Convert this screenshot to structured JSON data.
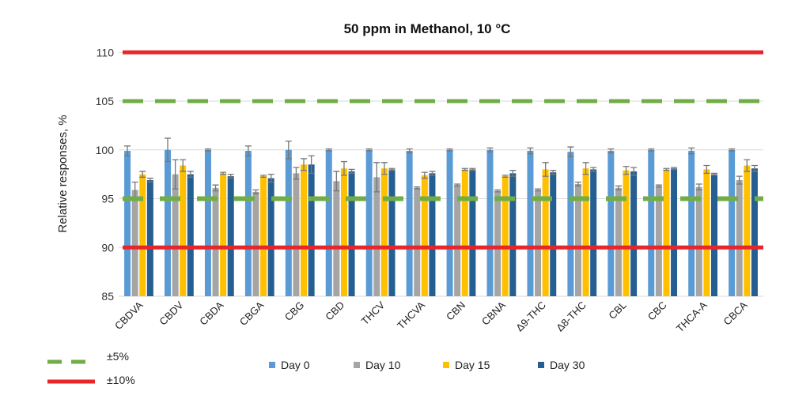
{
  "chart_data": {
    "type": "bar",
    "title": "50 ppm in Methanol, 10 °C",
    "xlabel": "",
    "ylabel": "Relative responses, %",
    "ylim": [
      85,
      110
    ],
    "yticks": [
      85,
      90,
      95,
      100,
      105,
      110
    ],
    "grid": true,
    "legend_position": "bottom",
    "categories": [
      "CBDVA",
      "CBDV",
      "CBDA",
      "CBGA",
      "CBG",
      "CBD",
      "THCV",
      "THCVA",
      "CBN",
      "CBNA",
      "Δ9-THC",
      "Δ8-THC",
      "CBL",
      "CBC",
      "THCA-A",
      "CBCA"
    ],
    "series": [
      {
        "name": "Day 0",
        "color": "#5b9bd5",
        "values": [
          99.9,
          100,
          100,
          99.9,
          100,
          100,
          100,
          99.9,
          100,
          100,
          99.9,
          99.8,
          99.9,
          100,
          99.9,
          100
        ],
        "errors": [
          0.5,
          1.2,
          0.1,
          0.5,
          0.9,
          0.1,
          0.1,
          0.2,
          0.1,
          0.2,
          0.3,
          0.5,
          0.2,
          0.1,
          0.3,
          0.1
        ]
      },
      {
        "name": "Day 10",
        "color": "#a5a5a5",
        "values": [
          95.9,
          97.5,
          96.1,
          95.7,
          97.6,
          96.8,
          97.2,
          96.1,
          96.4,
          95.8,
          95.9,
          96.5,
          96.1,
          96.3,
          96.2,
          96.9
        ]
      },
      {
        "name": "Day 15",
        "color": "#ffc000",
        "values": [
          97.5,
          98.4,
          97.6,
          97.3,
          98.5,
          98.1,
          98.1,
          97.4,
          98,
          97.3,
          98,
          98.1,
          97.9,
          98,
          98,
          98.4
        ]
      },
      {
        "name": "Day 30",
        "color": "#255e91",
        "values": [
          96.9,
          97.5,
          97.3,
          97.1,
          98.5,
          97.8,
          98,
          97.6,
          98,
          97.6,
          97.7,
          98,
          97.8,
          98.1,
          97.5,
          98.1
        ]
      }
    ],
    "series_errors": [
      [
        0.5,
        1.2,
        0.1,
        0.5,
        0.9,
        0.1,
        0.1,
        0.2,
        0.1,
        0.2,
        0.3,
        0.5,
        0.2,
        0.1,
        0.3,
        0.1
      ],
      [
        0.8,
        1.5,
        0.3,
        0.2,
        0.6,
        1.0,
        1.5,
        0.1,
        0.1,
        0.1,
        0.1,
        0.2,
        0.2,
        0.1,
        0.3,
        0.4
      ],
      [
        0.3,
        0.6,
        0.1,
        0.1,
        0.6,
        0.7,
        0.6,
        0.3,
        0.1,
        0.1,
        0.7,
        0.6,
        0.4,
        0.1,
        0.4,
        0.6
      ],
      [
        0.2,
        0.3,
        0.2,
        0.4,
        0.9,
        0.2,
        0.1,
        0.2,
        0.1,
        0.3,
        0.2,
        0.2,
        0.4,
        0.1,
        0.1,
        0.3
      ]
    ],
    "reference_lines": [
      {
        "label": "±5%",
        "values": [
          95,
          105
        ],
        "color": "#70ad47",
        "style": "dashed"
      },
      {
        "label": "±10%",
        "values": [
          90,
          110
        ],
        "color": "#e8262a",
        "style": "solid"
      }
    ]
  }
}
